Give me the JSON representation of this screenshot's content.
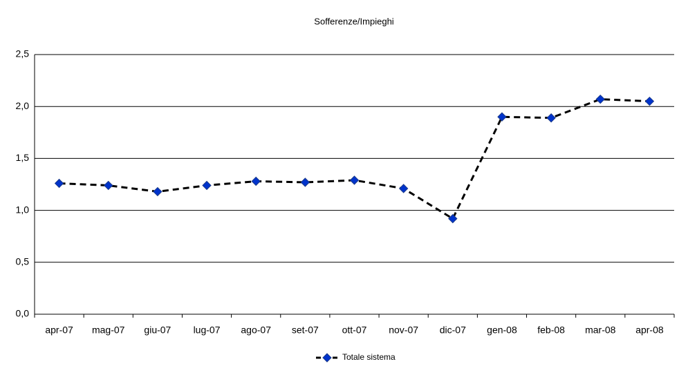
{
  "chart_data": {
    "type": "line",
    "title": "Sofferenze/Impieghi",
    "categories": [
      "apr-07",
      "mag-07",
      "giu-07",
      "lug-07",
      "ago-07",
      "set-07",
      "ott-07",
      "nov-07",
      "dic-07",
      "gen-08",
      "feb-08",
      "mar-08",
      "apr-08"
    ],
    "series": [
      {
        "name": "Totale sistema",
        "color": "#0033cc",
        "values": [
          1.26,
          1.24,
          1.18,
          1.24,
          1.28,
          1.27,
          1.29,
          1.21,
          0.92,
          1.9,
          1.89,
          2.07,
          2.05
        ]
      }
    ],
    "ylim": [
      0,
      2.5
    ],
    "yticks": [
      {
        "value": 0,
        "label": "0,0"
      },
      {
        "value": 0.5,
        "label": "0,5"
      },
      {
        "value": 1,
        "label": "1,0"
      },
      {
        "value": 1.5,
        "label": "1,5"
      },
      {
        "value": 2,
        "label": "2,0"
      },
      {
        "value": 2.5,
        "label": "2,5"
      }
    ],
    "grid": true
  }
}
